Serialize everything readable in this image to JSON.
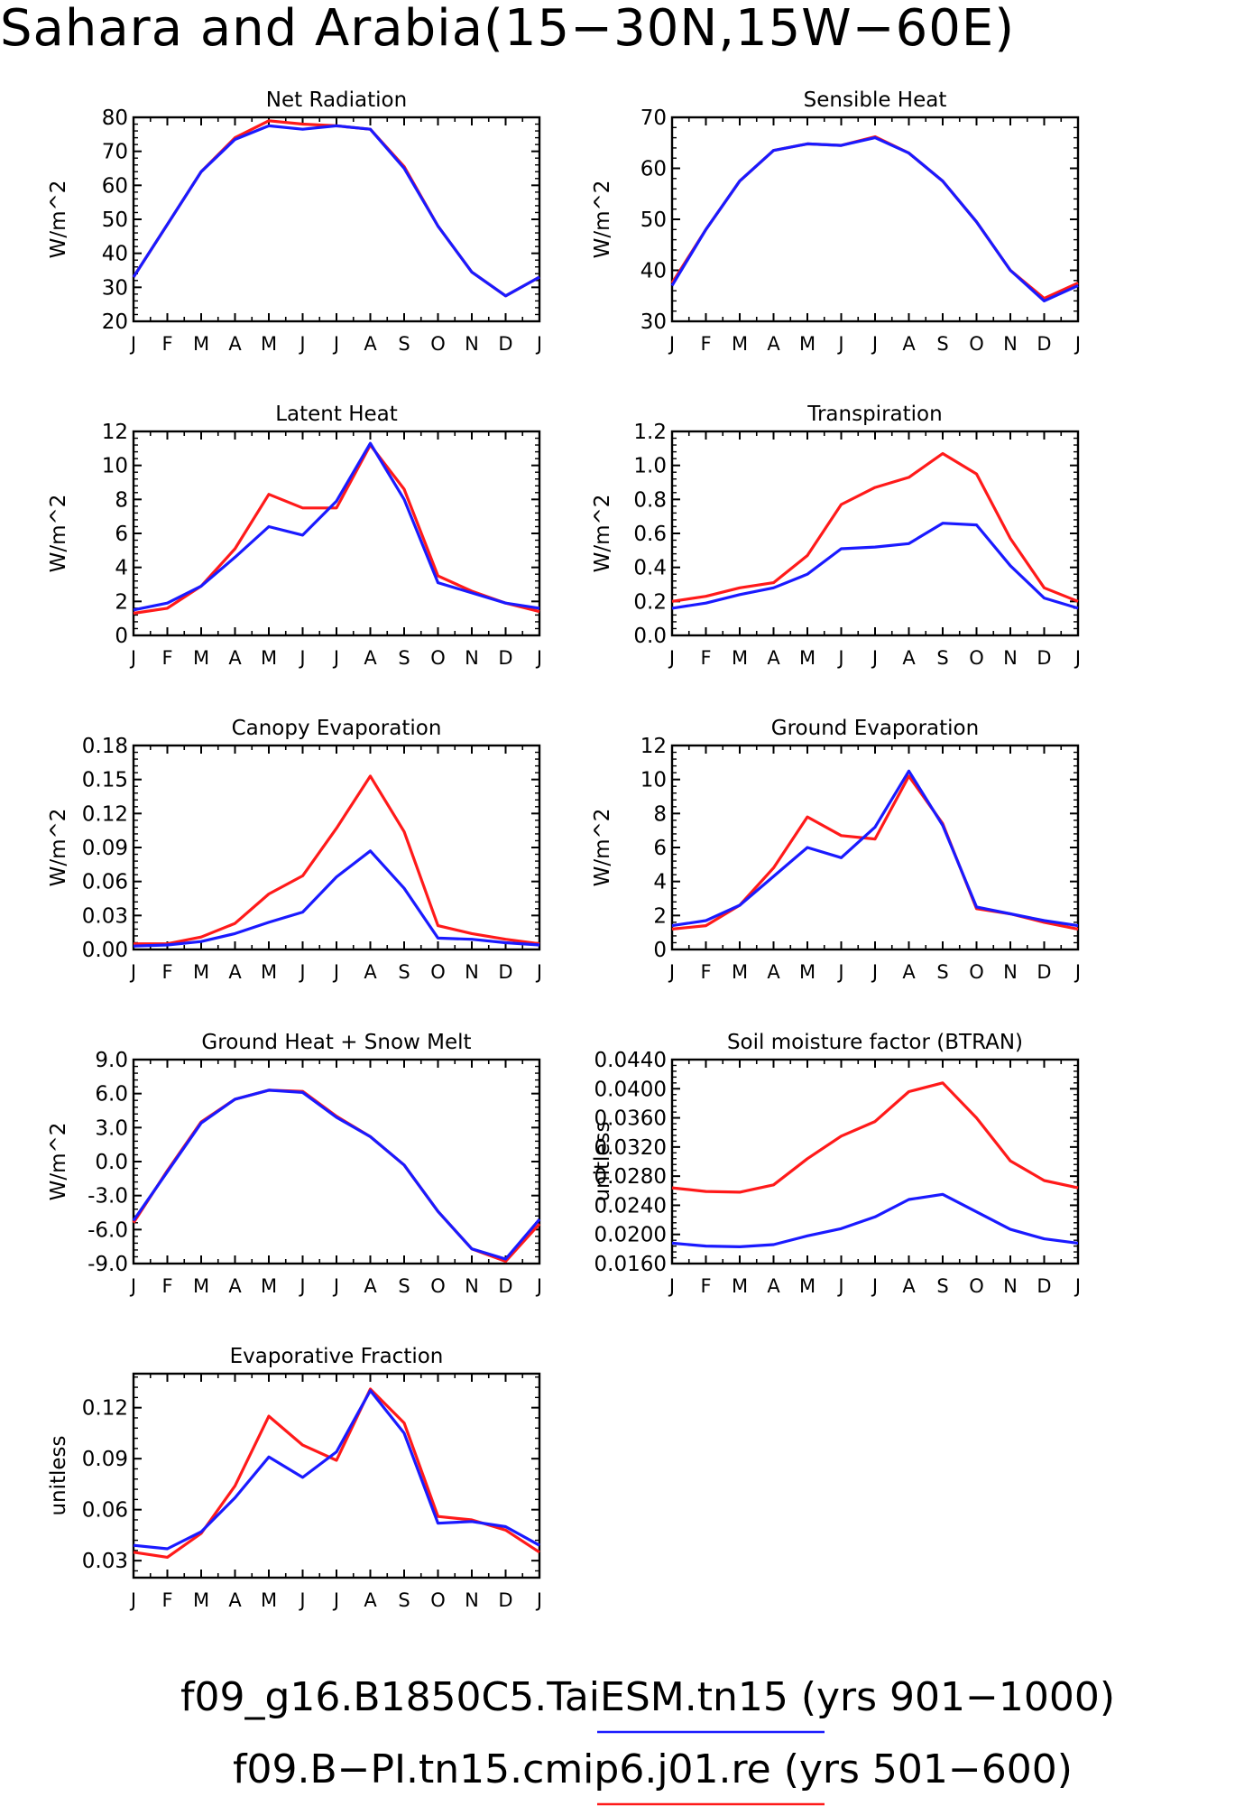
{
  "page": {
    "title": "Sahara and Arabia(15−30N,15W−60E)",
    "legend": [
      {
        "label": "f09_g16.B1850C5.TaiESM.tn15 (yrs 901−1000)",
        "color": "#1a1aff"
      },
      {
        "label": "f09.B−PI.tn15.cmip6.j01.re (yrs 501−600)",
        "color": "#ff1a1a"
      }
    ]
  },
  "colors": {
    "blue": "#1a1aff",
    "red": "#ff1a1a",
    "axis": "#000000"
  },
  "months": [
    "J",
    "F",
    "M",
    "A",
    "M",
    "J",
    "J",
    "A",
    "S",
    "O",
    "N",
    "D",
    "J"
  ],
  "chart_data": [
    {
      "type": "line",
      "title": "Net Radiation",
      "ylabel": "W/m^2",
      "ylim": [
        20,
        80
      ],
      "yticks": [
        "20",
        "30",
        "40",
        "50",
        "60",
        "70",
        "80"
      ],
      "ytick_values": [
        20,
        30,
        40,
        50,
        60,
        70,
        80
      ],
      "series": [
        {
          "color": "red",
          "values": [
            33,
            48.5,
            64,
            74,
            79,
            78,
            77.5,
            76.5,
            65.5,
            48,
            34.5,
            27.5,
            33
          ]
        },
        {
          "color": "blue",
          "values": [
            33,
            48.5,
            64,
            73.5,
            77.5,
            76.5,
            77.5,
            76.5,
            65,
            48,
            34.5,
            27.5,
            33
          ]
        }
      ]
    },
    {
      "type": "line",
      "title": "Sensible Heat",
      "ylabel": "W/m^2",
      "ylim": [
        30,
        70
      ],
      "yticks": [
        "30",
        "40",
        "50",
        "60",
        "70"
      ],
      "ytick_values": [
        30,
        40,
        50,
        60,
        70
      ],
      "series": [
        {
          "color": "red",
          "values": [
            37.5,
            48,
            57.5,
            63.5,
            64.8,
            64.5,
            66.2,
            63,
            57.5,
            49.5,
            40,
            34.5,
            37.5
          ]
        },
        {
          "color": "blue",
          "values": [
            37,
            48,
            57.5,
            63.5,
            64.8,
            64.5,
            66,
            63,
            57.5,
            49.5,
            40,
            34,
            37
          ]
        }
      ]
    },
    {
      "type": "line",
      "title": "Latent Heat",
      "ylabel": "W/m^2",
      "ylim": [
        0,
        12
      ],
      "yticks": [
        "0",
        "2",
        "4",
        "6",
        "8",
        "10",
        "12"
      ],
      "ytick_values": [
        0,
        2,
        4,
        6,
        8,
        10,
        12
      ],
      "series": [
        {
          "color": "red",
          "values": [
            1.3,
            1.6,
            2.9,
            5.1,
            8.3,
            7.5,
            7.5,
            11.2,
            8.6,
            3.5,
            2.6,
            1.9,
            1.4
          ]
        },
        {
          "color": "blue",
          "values": [
            1.5,
            1.9,
            2.9,
            4.6,
            6.4,
            5.9,
            7.9,
            11.3,
            8.0,
            3.1,
            2.5,
            1.9,
            1.6
          ]
        }
      ]
    },
    {
      "type": "line",
      "title": "Transpiration",
      "ylabel": "W/m^2",
      "ylim": [
        0,
        1.2
      ],
      "yticks": [
        "0.0",
        "0.2",
        "0.4",
        "0.6",
        "0.8",
        "1.0",
        "1.2"
      ],
      "ytick_values": [
        0,
        0.2,
        0.4,
        0.6,
        0.8,
        1.0,
        1.2
      ],
      "series": [
        {
          "color": "red",
          "values": [
            0.2,
            0.23,
            0.28,
            0.31,
            0.47,
            0.77,
            0.87,
            0.93,
            1.07,
            0.95,
            0.57,
            0.28,
            0.2
          ]
        },
        {
          "color": "blue",
          "values": [
            0.16,
            0.19,
            0.24,
            0.28,
            0.36,
            0.51,
            0.52,
            0.54,
            0.66,
            0.65,
            0.41,
            0.22,
            0.16
          ]
        }
      ]
    },
    {
      "type": "line",
      "title": "Canopy Evaporation",
      "ylabel": "W/m^2",
      "ylim": [
        0,
        0.18
      ],
      "yticks": [
        "0.00",
        "0.03",
        "0.06",
        "0.09",
        "0.12",
        "0.15",
        "0.18"
      ],
      "ytick_values": [
        0,
        0.03,
        0.06,
        0.09,
        0.12,
        0.15,
        0.18
      ],
      "series": [
        {
          "color": "red",
          "values": [
            0.005,
            0.005,
            0.011,
            0.023,
            0.049,
            0.065,
            0.107,
            0.153,
            0.104,
            0.021,
            0.014,
            0.009,
            0.005
          ]
        },
        {
          "color": "blue",
          "values": [
            0.003,
            0.004,
            0.007,
            0.014,
            0.024,
            0.033,
            0.064,
            0.087,
            0.054,
            0.01,
            0.009,
            0.006,
            0.004
          ]
        }
      ]
    },
    {
      "type": "line",
      "title": "Ground Evaporation",
      "ylabel": "W/m^2",
      "ylim": [
        0,
        12
      ],
      "yticks": [
        "0",
        "2",
        "4",
        "6",
        "8",
        "10",
        "12"
      ],
      "ytick_values": [
        0,
        2,
        4,
        6,
        8,
        10,
        12
      ],
      "series": [
        {
          "color": "red",
          "values": [
            1.2,
            1.4,
            2.6,
            4.8,
            7.8,
            6.7,
            6.5,
            10.2,
            7.4,
            2.4,
            2.1,
            1.6,
            1.2
          ]
        },
        {
          "color": "blue",
          "values": [
            1.4,
            1.7,
            2.6,
            4.3,
            6.0,
            5.4,
            7.2,
            10.5,
            7.3,
            2.5,
            2.1,
            1.7,
            1.4
          ]
        }
      ]
    },
    {
      "type": "line",
      "title": "Ground Heat + Snow Melt",
      "ylabel": "W/m^2",
      "ylim": [
        -9,
        9
      ],
      "yticks": [
        "-9.0",
        "-6.0",
        "-3.0",
        "0.0",
        "3.0",
        "6.0",
        "9.0"
      ],
      "ytick_values": [
        -9,
        -6,
        -3,
        0,
        3,
        6,
        9
      ],
      "series": [
        {
          "color": "red",
          "values": [
            -5.4,
            -0.8,
            3.5,
            5.5,
            6.3,
            6.2,
            4.0,
            2.2,
            -0.3,
            -4.4,
            -7.7,
            -8.8,
            -5.5
          ]
        },
        {
          "color": "blue",
          "values": [
            -5.2,
            -0.9,
            3.4,
            5.5,
            6.3,
            6.1,
            3.9,
            2.2,
            -0.3,
            -4.4,
            -7.7,
            -8.6,
            -5.1
          ]
        }
      ]
    },
    {
      "type": "line",
      "title": "Soil moisture factor (BTRAN)",
      "ylabel": "unitless",
      "ylim": [
        0.016,
        0.044
      ],
      "yticks": [
        "0.0160",
        "0.0200",
        "0.0240",
        "0.0280",
        "0.0320",
        "0.0360",
        "0.0400",
        "0.0440"
      ],
      "ytick_values": [
        0.016,
        0.02,
        0.024,
        0.028,
        0.032,
        0.036,
        0.04,
        0.044
      ],
      "series": [
        {
          "color": "red",
          "values": [
            0.0264,
            0.0259,
            0.0258,
            0.0268,
            0.0304,
            0.0335,
            0.0355,
            0.0396,
            0.0408,
            0.036,
            0.0301,
            0.0274,
            0.0264
          ]
        },
        {
          "color": "blue",
          "values": [
            0.0188,
            0.0184,
            0.0183,
            0.0186,
            0.0198,
            0.0208,
            0.0224,
            0.0248,
            0.0255,
            0.0231,
            0.0207,
            0.0194,
            0.0188
          ]
        }
      ]
    },
    {
      "type": "line",
      "title": "Evaporative Fraction",
      "ylabel": "unitless",
      "ylim": [
        0.02,
        0.14
      ],
      "yticks": [
        "0.03",
        "0.06",
        "0.09",
        "0.12"
      ],
      "ytick_values": [
        0.03,
        0.06,
        0.09,
        0.12
      ],
      "series": [
        {
          "color": "red",
          "values": [
            0.035,
            0.032,
            0.046,
            0.074,
            0.115,
            0.098,
            0.089,
            0.131,
            0.111,
            0.056,
            0.054,
            0.048,
            0.035
          ]
        },
        {
          "color": "blue",
          "values": [
            0.039,
            0.037,
            0.047,
            0.067,
            0.091,
            0.079,
            0.094,
            0.13,
            0.105,
            0.052,
            0.053,
            0.05,
            0.039
          ]
        }
      ]
    }
  ]
}
